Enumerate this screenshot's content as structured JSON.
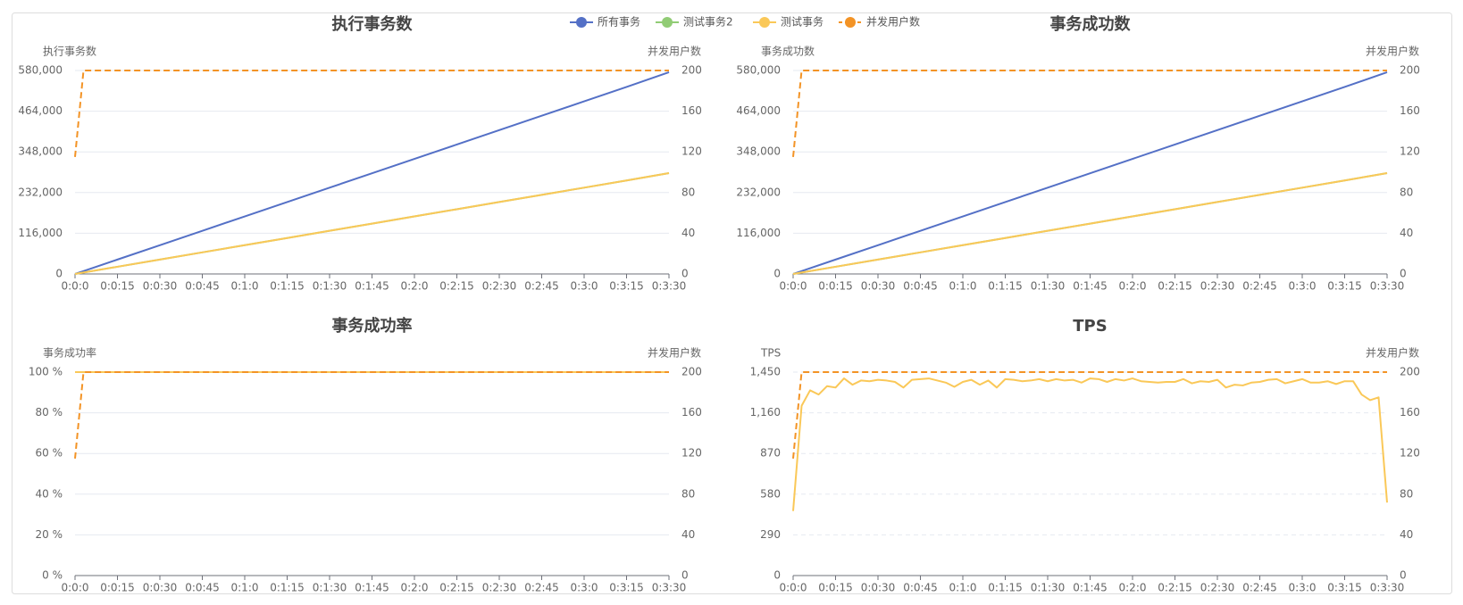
{
  "chart_data": [
    {
      "type": "line",
      "title": "执行事务数",
      "ylabel": "执行事务数",
      "y2label": "并发用户数",
      "x": [
        0,
        3,
        15,
        30,
        45,
        60,
        75,
        90,
        105,
        120,
        135,
        150,
        165,
        180,
        195,
        210
      ],
      "xlim": [
        0,
        210
      ],
      "xticks": [
        {
          "value": 0,
          "label": "0:0:0"
        },
        {
          "value": 15,
          "label": "0:0:15"
        },
        {
          "value": 30,
          "label": "0:0:30"
        },
        {
          "value": 45,
          "label": "0:0:45"
        },
        {
          "value": 60,
          "label": "0:1:0"
        },
        {
          "value": 75,
          "label": "0:1:15"
        },
        {
          "value": 90,
          "label": "0:1:30"
        },
        {
          "value": 105,
          "label": "0:1:45"
        },
        {
          "value": 120,
          "label": "0:2:0"
        },
        {
          "value": 135,
          "label": "0:2:15"
        },
        {
          "value": 150,
          "label": "0:2:30"
        },
        {
          "value": 165,
          "label": "0:2:45"
        },
        {
          "value": 180,
          "label": "0:3:0"
        },
        {
          "value": 195,
          "label": "0:3:15"
        },
        {
          "value": 210,
          "label": "0:3:30"
        }
      ],
      "ylim": [
        0,
        580000
      ],
      "yticks": [
        0,
        {
          "value": 116000,
          "label": "116,000"
        },
        {
          "value": 232000,
          "label": "232,000"
        },
        {
          "value": 348000,
          "label": "348,000"
        },
        {
          "value": 464000,
          "label": "464,000"
        },
        {
          "value": 580000,
          "label": "580,000"
        }
      ],
      "y2lim": [
        0,
        200
      ],
      "y2ticks": [
        0,
        40,
        80,
        120,
        160,
        200
      ],
      "grid": true,
      "grid_dashed": false,
      "series": [
        {
          "name": "所有事务",
          "color": "#5470c6",
          "values": [
            0,
            8200,
            41000,
            82000,
            123000,
            164000,
            205000,
            246000,
            287000,
            328000,
            369000,
            410000,
            451000,
            492000,
            533000,
            575000
          ]
        },
        {
          "name": "测试事务2",
          "color": "#91cc75",
          "values": [
            0,
            4100,
            20500,
            41000,
            61500,
            82000,
            102500,
            123000,
            143500,
            164000,
            184500,
            205000,
            225500,
            246000,
            266500,
            287500
          ]
        },
        {
          "name": "测试事务",
          "color": "#fac858",
          "values": [
            0,
            4100,
            20500,
            41000,
            61500,
            82000,
            102500,
            123000,
            143500,
            164000,
            184500,
            205000,
            225500,
            246000,
            266500,
            287500
          ]
        },
        {
          "name": "并发用户数",
          "color": "#f39325",
          "axis": "y2",
          "dashed": true,
          "values": [
            115,
            200,
            200,
            200,
            200,
            200,
            200,
            200,
            200,
            200,
            200,
            200,
            200,
            200,
            200,
            200
          ]
        }
      ]
    },
    {
      "type": "line",
      "title": "事务成功数",
      "ylabel": "事务成功数",
      "y2label": "并发用户数",
      "x": [
        0,
        3,
        15,
        30,
        45,
        60,
        75,
        90,
        105,
        120,
        135,
        150,
        165,
        180,
        195,
        210
      ],
      "xlim": [
        0,
        210
      ],
      "xticks": [
        {
          "value": 0,
          "label": "0:0:0"
        },
        {
          "value": 15,
          "label": "0:0:15"
        },
        {
          "value": 30,
          "label": "0:0:30"
        },
        {
          "value": 45,
          "label": "0:0:45"
        },
        {
          "value": 60,
          "label": "0:1:0"
        },
        {
          "value": 75,
          "label": "0:1:15"
        },
        {
          "value": 90,
          "label": "0:1:30"
        },
        {
          "value": 105,
          "label": "0:1:45"
        },
        {
          "value": 120,
          "label": "0:2:0"
        },
        {
          "value": 135,
          "label": "0:2:15"
        },
        {
          "value": 150,
          "label": "0:2:30"
        },
        {
          "value": 165,
          "label": "0:2:45"
        },
        {
          "value": 180,
          "label": "0:3:0"
        },
        {
          "value": 195,
          "label": "0:3:15"
        },
        {
          "value": 210,
          "label": "0:3:30"
        }
      ],
      "ylim": [
        0,
        580000
      ],
      "yticks": [
        0,
        {
          "value": 116000,
          "label": "116,000"
        },
        {
          "value": 232000,
          "label": "232,000"
        },
        {
          "value": 348000,
          "label": "348,000"
        },
        {
          "value": 464000,
          "label": "464,000"
        },
        {
          "value": 580000,
          "label": "580,000"
        }
      ],
      "y2lim": [
        0,
        200
      ],
      "y2ticks": [
        0,
        40,
        80,
        120,
        160,
        200
      ],
      "grid": true,
      "grid_dashed": false,
      "series": [
        {
          "name": "所有事务",
          "color": "#5470c6",
          "values": [
            0,
            8200,
            41000,
            82000,
            123000,
            164000,
            205000,
            246000,
            287000,
            328000,
            369000,
            410000,
            451000,
            492000,
            533000,
            575000
          ]
        },
        {
          "name": "测试事务2",
          "color": "#91cc75",
          "values": [
            0,
            4100,
            20500,
            41000,
            61500,
            82000,
            102500,
            123000,
            143500,
            164000,
            184500,
            205000,
            225500,
            246000,
            266500,
            287500
          ]
        },
        {
          "name": "测试事务",
          "color": "#fac858",
          "values": [
            0,
            4100,
            20500,
            41000,
            61500,
            82000,
            102500,
            123000,
            143500,
            164000,
            184500,
            205000,
            225500,
            246000,
            266500,
            287500
          ]
        },
        {
          "name": "并发用户数",
          "color": "#f39325",
          "axis": "y2",
          "dashed": true,
          "values": [
            115,
            200,
            200,
            200,
            200,
            200,
            200,
            200,
            200,
            200,
            200,
            200,
            200,
            200,
            200,
            200
          ]
        }
      ]
    },
    {
      "type": "line",
      "title": "事务成功率",
      "ylabel": "事务成功率",
      "y2label": "并发用户数",
      "x": [
        0,
        3,
        15,
        30,
        45,
        60,
        75,
        90,
        105,
        120,
        135,
        150,
        165,
        180,
        195,
        210
      ],
      "xlim": [
        0,
        210
      ],
      "xticks": [
        {
          "value": 0,
          "label": "0:0:0"
        },
        {
          "value": 15,
          "label": "0:0:15"
        },
        {
          "value": 30,
          "label": "0:0:30"
        },
        {
          "value": 45,
          "label": "0:0:45"
        },
        {
          "value": 60,
          "label": "0:1:0"
        },
        {
          "value": 75,
          "label": "0:1:15"
        },
        {
          "value": 90,
          "label": "0:1:30"
        },
        {
          "value": 105,
          "label": "0:1:45"
        },
        {
          "value": 120,
          "label": "0:2:0"
        },
        {
          "value": 135,
          "label": "0:2:15"
        },
        {
          "value": 150,
          "label": "0:2:30"
        },
        {
          "value": 165,
          "label": "0:2:45"
        },
        {
          "value": 180,
          "label": "0:3:0"
        },
        {
          "value": 195,
          "label": "0:3:15"
        },
        {
          "value": 210,
          "label": "0:3:30"
        }
      ],
      "ylim": [
        0,
        100
      ],
      "yticks": [
        {
          "value": 0,
          "label": "0 %"
        },
        {
          "value": 20,
          "label": "20 %"
        },
        {
          "value": 40,
          "label": "40 %"
        },
        {
          "value": 60,
          "label": "60 %"
        },
        {
          "value": 80,
          "label": "80 %"
        },
        {
          "value": 100,
          "label": "100 %"
        }
      ],
      "y2lim": [
        0,
        200
      ],
      "y2ticks": [
        0,
        40,
        80,
        120,
        160,
        200
      ],
      "grid": true,
      "grid_dashed": false,
      "series": [
        {
          "name": "测试事务",
          "color": "#fac858",
          "values": [
            100,
            100,
            100,
            100,
            100,
            100,
            100,
            100,
            100,
            100,
            100,
            100,
            100,
            100,
            100,
            100
          ]
        },
        {
          "name": "并发用户数",
          "color": "#f39325",
          "axis": "y2",
          "dashed": true,
          "values": [
            115,
            200,
            200,
            200,
            200,
            200,
            200,
            200,
            200,
            200,
            200,
            200,
            200,
            200,
            200,
            200
          ]
        }
      ]
    },
    {
      "type": "line",
      "title": "TPS",
      "ylabel": "TPS",
      "y2label": "并发用户数",
      "x": [
        0,
        3,
        6,
        9,
        12,
        15,
        18,
        21,
        24,
        27,
        30,
        33,
        36,
        39,
        42,
        45,
        48,
        51,
        54,
        57,
        60,
        63,
        66,
        69,
        72,
        75,
        78,
        81,
        84,
        87,
        90,
        93,
        96,
        99,
        102,
        105,
        108,
        111,
        114,
        117,
        120,
        123,
        126,
        129,
        132,
        135,
        138,
        141,
        144,
        147,
        150,
        153,
        156,
        159,
        162,
        165,
        168,
        171,
        174,
        177,
        180,
        183,
        186,
        189,
        192,
        195,
        198,
        201,
        204,
        207,
        210
      ],
      "xlim": [
        0,
        210
      ],
      "xticks": [
        {
          "value": 0,
          "label": "0:0:0"
        },
        {
          "value": 15,
          "label": "0:0:15"
        },
        {
          "value": 30,
          "label": "0:0:30"
        },
        {
          "value": 45,
          "label": "0:0:45"
        },
        {
          "value": 60,
          "label": "0:1:0"
        },
        {
          "value": 75,
          "label": "0:1:15"
        },
        {
          "value": 90,
          "label": "0:1:30"
        },
        {
          "value": 105,
          "label": "0:1:45"
        },
        {
          "value": 120,
          "label": "0:2:0"
        },
        {
          "value": 135,
          "label": "0:2:15"
        },
        {
          "value": 150,
          "label": "0:2:30"
        },
        {
          "value": 165,
          "label": "0:2:45"
        },
        {
          "value": 180,
          "label": "0:3:0"
        },
        {
          "value": 195,
          "label": "0:3:15"
        },
        {
          "value": 210,
          "label": "0:3:30"
        }
      ],
      "ylim": [
        0,
        1450
      ],
      "yticks": [
        0,
        290,
        580,
        870,
        {
          "value": 1160,
          "label": "1,160"
        },
        {
          "value": 1450,
          "label": "1,450"
        }
      ],
      "y2lim": [
        0,
        200
      ],
      "y2ticks": [
        0,
        40,
        80,
        120,
        160,
        200
      ],
      "grid": true,
      "grid_dashed": true,
      "series": [
        {
          "name": "测试事务",
          "color": "#fac858",
          "values": [
            460,
            1210,
            1320,
            1290,
            1350,
            1340,
            1405,
            1360,
            1390,
            1385,
            1395,
            1390,
            1380,
            1340,
            1395,
            1400,
            1405,
            1390,
            1375,
            1345,
            1380,
            1395,
            1360,
            1390,
            1340,
            1400,
            1395,
            1385,
            1390,
            1400,
            1385,
            1400,
            1390,
            1395,
            1375,
            1405,
            1400,
            1380,
            1400,
            1390,
            1405,
            1385,
            1380,
            1375,
            1380,
            1380,
            1400,
            1370,
            1385,
            1380,
            1395,
            1340,
            1360,
            1355,
            1375,
            1380,
            1395,
            1400,
            1370,
            1385,
            1400,
            1375,
            1375,
            1385,
            1365,
            1385,
            1385,
            1290,
            1250,
            1270,
            520
          ]
        },
        {
          "name": "并发用户数",
          "color": "#f39325",
          "axis": "y2",
          "dashed": true,
          "values": [
            115,
            200,
            200,
            200,
            200,
            200,
            200,
            200,
            200,
            200,
            200,
            200,
            200,
            200,
            200,
            200,
            200,
            200,
            200,
            200,
            200,
            200,
            200,
            200,
            200,
            200,
            200,
            200,
            200,
            200,
            200,
            200,
            200,
            200,
            200,
            200,
            200,
            200,
            200,
            200,
            200,
            200,
            200,
            200,
            200,
            200,
            200,
            200,
            200,
            200,
            200,
            200,
            200,
            200,
            200,
            200,
            200,
            200,
            200,
            200,
            200,
            200,
            200,
            200,
            200,
            200,
            200,
            200,
            200,
            200,
            200
          ]
        }
      ]
    }
  ]
}
